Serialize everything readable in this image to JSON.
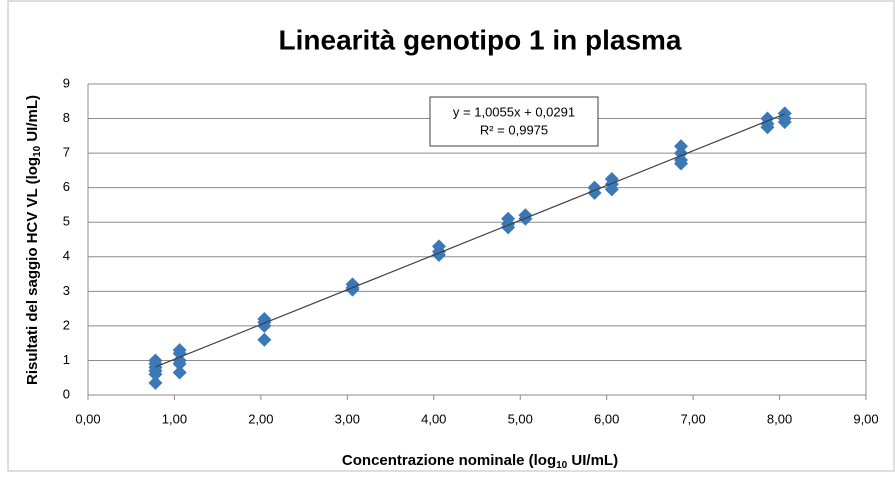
{
  "chart_data": {
    "type": "scatter",
    "title": "Linearità genotipo 1 in plasma",
    "xlabel_parts": [
      "Concentrazione nominale (log",
      "10",
      " UI/mL)"
    ],
    "ylabel_parts": [
      "Risultati del saggio HCV VL  (log",
      "10",
      " UI/mL)"
    ],
    "xlim": [
      0,
      9
    ],
    "ylim": [
      0,
      9
    ],
    "xticks": [
      {
        "value": 0,
        "label": "0,00"
      },
      {
        "value": 1,
        "label": "1,00"
      },
      {
        "value": 2,
        "label": "2,00"
      },
      {
        "value": 3,
        "label": "3,00"
      },
      {
        "value": 4,
        "label": "4,00"
      },
      {
        "value": 5,
        "label": "5,00"
      },
      {
        "value": 6,
        "label": "6,00"
      },
      {
        "value": 7,
        "label": "7,00"
      },
      {
        "value": 8,
        "label": "8,00"
      },
      {
        "value": 9,
        "label": "9,00"
      }
    ],
    "yticks": [
      0,
      1,
      2,
      3,
      4,
      5,
      6,
      7,
      8,
      9
    ],
    "grid": true,
    "series": [
      {
        "color": "#3a78b8",
        "x": [
          0.78,
          0.78,
          0.78,
          0.78,
          0.78,
          0.78,
          1.06,
          1.06,
          1.06,
          1.06,
          1.06,
          2.04,
          2.04,
          2.04,
          2.04,
          3.06,
          3.06,
          3.06,
          4.06,
          4.06,
          4.06,
          4.86,
          4.86,
          4.86,
          5.06,
          5.06,
          5.86,
          5.86,
          6.06,
          6.06,
          6.06,
          6.86,
          6.86,
          6.86,
          6.86,
          7.86,
          7.86,
          7.86,
          8.06,
          8.06,
          8.06
        ],
        "values": [
          1.0,
          0.9,
          0.8,
          0.7,
          0.6,
          0.35,
          1.3,
          1.2,
          1.0,
          0.9,
          0.65,
          2.2,
          2.1,
          2.0,
          1.6,
          3.2,
          3.1,
          3.05,
          4.3,
          4.15,
          4.05,
          5.1,
          4.95,
          4.85,
          5.2,
          5.1,
          6.0,
          5.85,
          6.25,
          6.1,
          5.95,
          7.2,
          7.0,
          6.8,
          6.7,
          8.0,
          7.85,
          7.75,
          8.15,
          8.0,
          7.9
        ]
      }
    ],
    "trendline": {
      "slope": 1.0055,
      "intercept": 0.0291,
      "equation": "y = 1,0055x + 0,0291",
      "r2": "R² = 0,9975"
    }
  }
}
